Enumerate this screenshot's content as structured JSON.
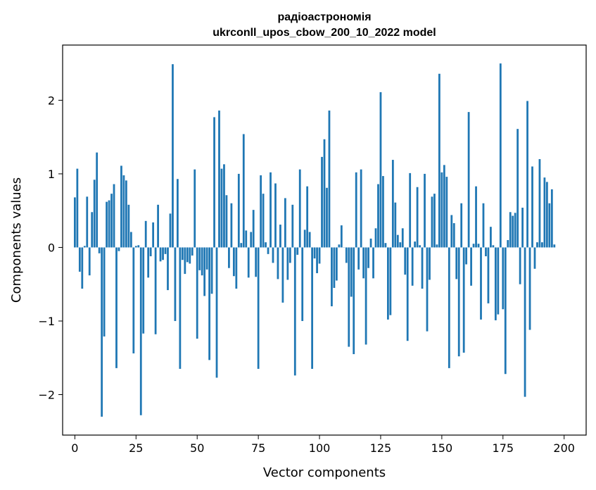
{
  "chart_data": {
    "type": "bar",
    "title_line1": "радіоастрономія",
    "title_line2": "ukrconll_upos_cbow_200_10_2022 model",
    "xlabel": "Vector components",
    "ylabel": "Components values",
    "xlim": [
      -5,
      209
    ],
    "ylim": [
      -2.55,
      2.75
    ],
    "xticks": [
      0,
      25,
      50,
      75,
      100,
      125,
      150,
      175,
      200
    ],
    "yticks": [
      -2,
      -1,
      0,
      1,
      2
    ],
    "ytick_labels": [
      "−2",
      "−1",
      "0",
      "1",
      "2"
    ],
    "bar_color": "#1f77b4",
    "bar_width": 0.8,
    "values": [
      0.68,
      1.07,
      -0.33,
      -0.56,
      0.02,
      0.69,
      -0.38,
      0.48,
      0.92,
      1.29,
      -0.08,
      -2.3,
      -1.21,
      0.62,
      0.64,
      0.73,
      0.86,
      -1.64,
      -0.05,
      1.11,
      0.98,
      0.91,
      0.58,
      0.21,
      -1.44,
      0.02,
      0.03,
      -2.28,
      -1.17,
      0.36,
      -0.41,
      -0.12,
      0.34,
      -1.18,
      0.58,
      -0.19,
      -0.17,
      -0.09,
      -0.58,
      0.46,
      2.49,
      -1.0,
      0.93,
      -1.65,
      -0.17,
      -0.36,
      -0.2,
      -0.22,
      -0.11,
      1.06,
      -1.24,
      -0.31,
      -0.38,
      -0.66,
      -0.3,
      -1.53,
      -0.63,
      1.77,
      -1.77,
      1.86,
      1.07,
      1.13,
      0.71,
      -0.28,
      0.6,
      -0.39,
      -0.56,
      1.0,
      0.06,
      1.54,
      0.23,
      -0.41,
      0.21,
      0.51,
      -0.4,
      -1.65,
      0.98,
      0.73,
      0.07,
      -0.09,
      1.02,
      -0.21,
      0.87,
      -0.43,
      0.31,
      -0.75,
      0.67,
      -0.44,
      -0.21,
      0.58,
      -1.74,
      -0.1,
      1.06,
      -1.0,
      0.24,
      0.83,
      0.21,
      -1.65,
      -0.15,
      -0.35,
      -0.22,
      1.23,
      1.47,
      0.81,
      1.86,
      -0.8,
      -0.55,
      -0.45,
      0.04,
      0.3,
      0.0,
      -0.21,
      -1.35,
      -0.67,
      -1.45,
      1.02,
      -0.3,
      1.06,
      -0.42,
      -1.32,
      -0.28,
      0.12,
      -0.42,
      0.26,
      0.86,
      2.11,
      0.97,
      0.06,
      -0.98,
      -0.92,
      1.19,
      0.61,
      0.17,
      0.07,
      0.26,
      -0.37,
      -1.27,
      1.01,
      -0.52,
      0.08,
      0.82,
      0.03,
      -0.56,
      1.0,
      -1.14,
      -0.44,
      0.69,
      0.73,
      0.04,
      2.36,
      1.02,
      1.12,
      0.96,
      -1.64,
      0.44,
      0.33,
      -0.43,
      -1.48,
      0.6,
      -1.43,
      -0.23,
      1.84,
      -0.52,
      0.05,
      0.83,
      0.05,
      -0.98,
      0.6,
      -0.12,
      -0.76,
      0.28,
      0.03,
      -0.99,
      -0.91,
      2.5,
      -0.84,
      -1.72,
      0.1,
      0.48,
      0.43,
      0.47,
      1.61,
      -0.5,
      0.54,
      -2.03,
      1.99,
      -1.12,
      1.1,
      -0.29,
      0.07,
      1.2,
      0.07,
      0.95,
      0.89,
      0.6,
      0.79,
      0.04
    ]
  }
}
